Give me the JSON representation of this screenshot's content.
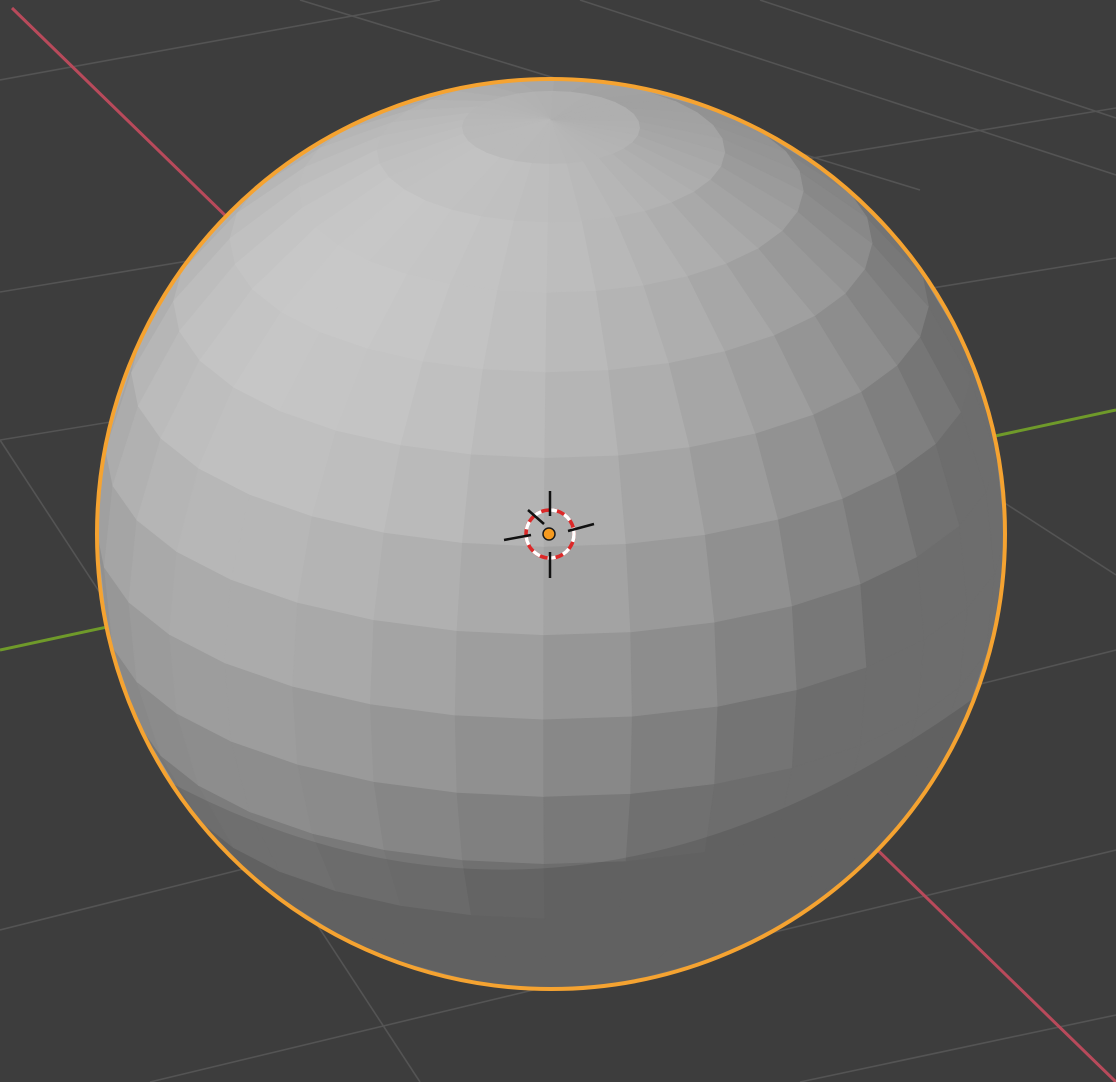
{
  "viewport": {
    "view": "3D Viewport",
    "shading": "solid",
    "background_color": "#3d3d3d",
    "grid_color": "#545454",
    "x_axis_color": "#b84a5b",
    "y_axis_color": "#6f9a2a"
  },
  "object": {
    "type": "uv-sphere",
    "selected": true,
    "active": true,
    "base_color": "#b9b9b9",
    "outline_color": "#f5a331",
    "origin_color": "#f59a1f"
  },
  "cursor_3d": {
    "ring_color_a": "#dc2828",
    "ring_color_b": "#ffffff",
    "crosshair_color": "#111111"
  }
}
